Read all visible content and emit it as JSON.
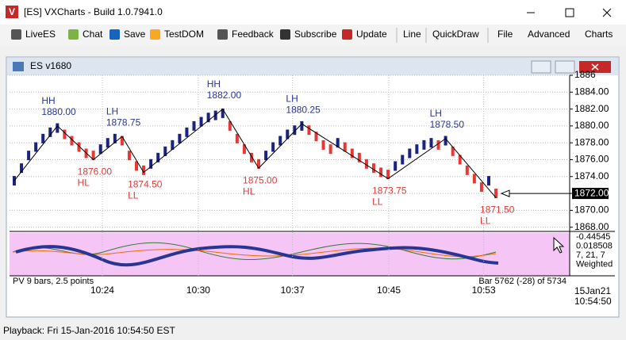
{
  "window": {
    "title": "[ES] VXCharts - Build 1.0.7941.0"
  },
  "toolbar": [
    "LiveES",
    "Chat",
    "Save",
    "TestDOM",
    "Feedback",
    "Subscribe",
    "Update",
    "Line",
    "QuickDraw",
    "File",
    "Advanced",
    "Charts"
  ],
  "chart_window": {
    "title": "ES v1680"
  },
  "chart_data": {
    "type": "price-bars",
    "up_color": "#1a237e",
    "down_color": "#e53935",
    "values": [
      1873.5,
      1875.0,
      1876.5,
      1877.5,
      1878.5,
      1879.25,
      1879.75,
      1879.0,
      1878.25,
      1877.5,
      1876.75,
      1876.5,
      1877.25,
      1878.0,
      1878.5,
      1878.25,
      1876.5,
      1875.25,
      1874.75,
      1875.5,
      1876.25,
      1877.0,
      1877.75,
      1878.5,
      1879.25,
      1880.0,
      1880.5,
      1881.0,
      1881.25,
      1881.5,
      1880.0,
      1878.5,
      1877.25,
      1876.25,
      1875.5,
      1876.5,
      1877.5,
      1878.25,
      1879.0,
      1879.5,
      1880.0,
      1879.5,
      1878.75,
      1877.75,
      1877.25,
      1878.0,
      1877.5,
      1876.75,
      1876.25,
      1875.5,
      1875.0,
      1874.5,
      1874.25,
      1875.25,
      1876.0,
      1876.75,
      1877.25,
      1877.75,
      1878.0,
      1877.75,
      1878.25,
      1877.0,
      1876.0,
      1874.75,
      1873.75,
      1872.75,
      1873.5,
      1872.0
    ],
    "swings": {
      "x": [
        0,
        6,
        11,
        15,
        18,
        29,
        34,
        40,
        52,
        60,
        67
      ],
      "values": [
        1873.5,
        1880,
        1876,
        1878.75,
        1874.5,
        1882,
        1875,
        1880.25,
        1873.75,
        1878.5,
        1871.5
      ],
      "value_labels": [
        null,
        "1880.00",
        "1876.00",
        "1878.75",
        "1874.50",
        "1882.00",
        "1875.00",
        "1880.25",
        "1873.75",
        "1878.50",
        "1871.50"
      ],
      "tags": [
        null,
        "HH",
        "HL",
        "LH",
        "LL",
        "HH",
        "HL",
        "LH",
        "LL",
        "LH",
        "LL"
      ]
    },
    "last_price": {
      "value": 1872,
      "label": "1872.00"
    },
    "ylim": [
      1867.5,
      1886
    ],
    "yticks": [
      {
        "value": 1868,
        "label": "1868.00"
      },
      {
        "value": 1870,
        "label": "1870.00"
      },
      {
        "value": 1872,
        "label": "1872.00"
      },
      {
        "value": 1874,
        "label": "1874.00"
      },
      {
        "value": 1876,
        "label": "1876.00"
      },
      {
        "value": 1878,
        "label": "1878.00"
      },
      {
        "value": 1880,
        "label": "1880.00"
      },
      {
        "value": 1882,
        "label": "1882.00"
      },
      {
        "value": 1884,
        "label": "1884.00"
      },
      {
        "value": 1886,
        "label": "1886"
      }
    ],
    "xlim": [
      -0.66,
      77.26
    ],
    "xticks": [
      {
        "value": 12.25,
        "label": "10:24"
      },
      {
        "value": 25.6,
        "label": "10:30"
      },
      {
        "value": 38.7,
        "label": "10:37"
      },
      {
        "value": 52.1,
        "label": "10:45"
      },
      {
        "value": 65.3,
        "label": "10:53"
      }
    ],
    "grid": true,
    "indicator_labels": [
      "-0.44545",
      "0.018508",
      "7, 21, 7",
      "Weighted"
    ],
    "footer_left": "PV 9 bars, 2.5 points",
    "footer_right": "Bar 5762 (-28) of 5734",
    "date_label": "15Jan21",
    "time_label": "10:54:50"
  },
  "status": "Playback: Fri 15-Jan-2016 10:54:50 EST"
}
